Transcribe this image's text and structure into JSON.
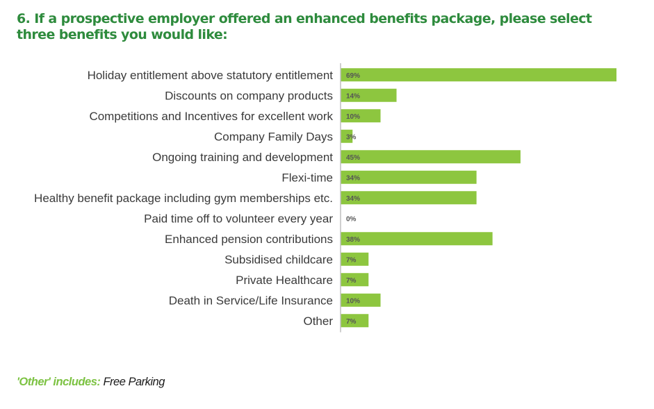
{
  "question": "6. If a prospective employer offered an enhanced benefits package, please select three benefits you would like:",
  "colors": {
    "bar": "#8dc63f",
    "heading": "#2e8b3d",
    "accent": "#7cc242",
    "label": "#3a3a3a",
    "value": "#555555",
    "axis": "#bfbfbf"
  },
  "chart_data": {
    "type": "bar",
    "orientation": "horizontal",
    "title": "",
    "xlabel": "",
    "ylabel": "",
    "xlim": [
      0,
      69
    ],
    "grid": false,
    "categories": [
      "Holiday entitlement above statutory entitlement",
      "Discounts on company products",
      "Competitions and Incentives for excellent work",
      "Company Family Days",
      "Ongoing training and development",
      "Flexi-time",
      "Healthy benefit package including gym memberships etc.",
      "Paid time off to volunteer every year",
      "Enhanced pension contributions",
      "Subsidised childcare",
      "Private Healthcare",
      "Death in Service/Life Insurance",
      "Other"
    ],
    "values": [
      69,
      14,
      10,
      3,
      45,
      34,
      34,
      0,
      38,
      7,
      7,
      10,
      7
    ],
    "value_labels": [
      "69%",
      "14%",
      "10%",
      "3%",
      "45%",
      "34%",
      "34%",
      "0%",
      "38%",
      "7%",
      "7%",
      "10%",
      "7%"
    ]
  },
  "footnote": {
    "label": "'Other' includes:",
    "value": " Free Parking"
  }
}
